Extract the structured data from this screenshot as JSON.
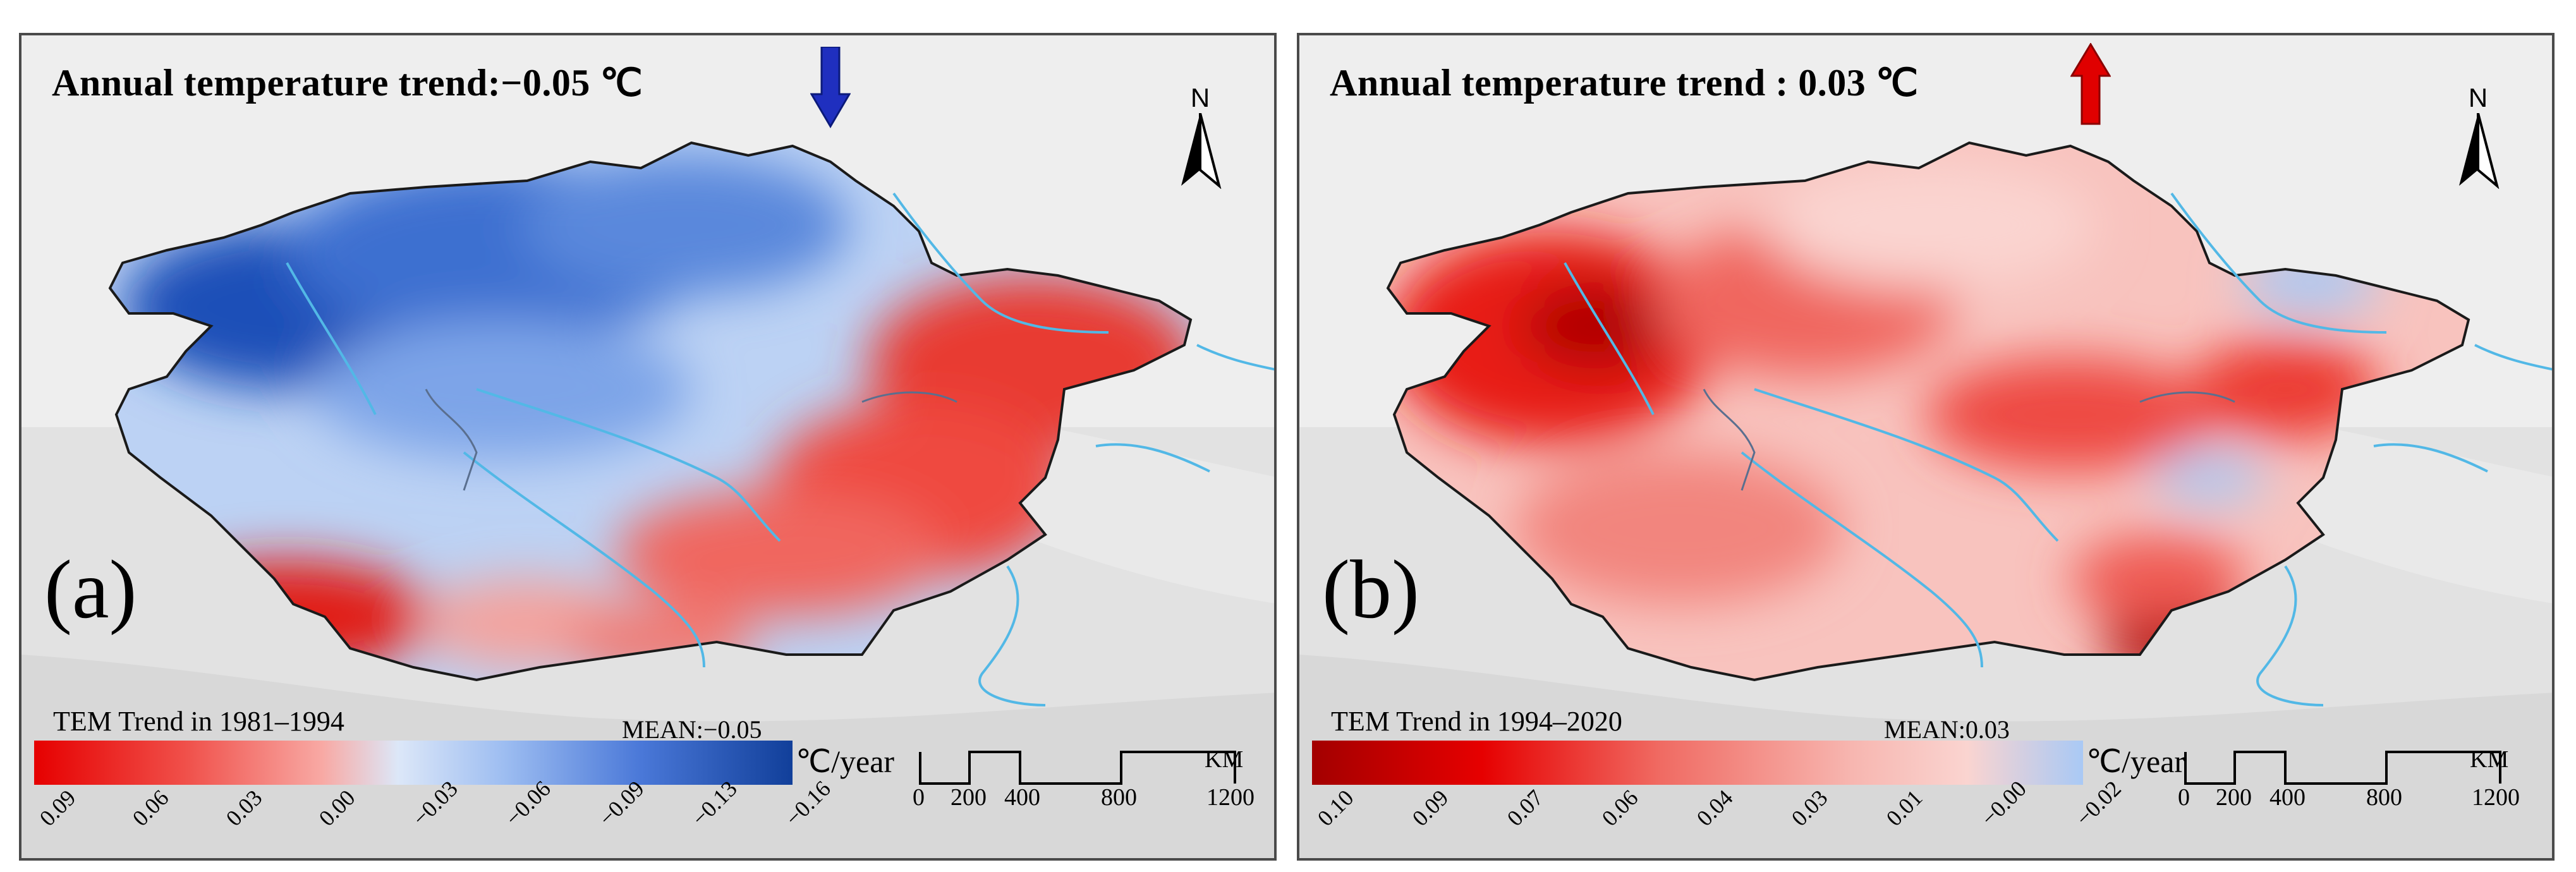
{
  "panels": [
    {
      "id": "a",
      "title": "Annual temperature trend:−0.05 ℃",
      "letter": "(a)",
      "legend_title": "TEM Trend in 1981–1994",
      "mean_label": "MEAN:−0.05",
      "unit": "℃/year",
      "ticks": [
        "0.09",
        "0.06",
        "0.03",
        "0.00",
        "−0.03",
        "−0.06",
        "−0.09",
        "−0.13",
        "−0.16"
      ],
      "trend_direction": "down",
      "arrow_color": "#1f2fbf",
      "colorbar_colors": [
        "#e60000",
        "#f0504a",
        "#f8a9a4",
        "#c8daf7",
        "#7aa4ec",
        "#2a5fc8",
        "#113f9a"
      ]
    },
    {
      "id": "b",
      "title": "Annual temperature trend : 0.03 ℃",
      "letter": "(b)",
      "legend_title": "TEM Trend in 1994–2020",
      "mean_label": "MEAN:0.03",
      "unit": "℃/year",
      "ticks": [
        "0.10",
        "0.09",
        "0.07",
        "0.06",
        "0.04",
        "0.03",
        "0.01",
        "−0.00",
        "−0.02"
      ],
      "trend_direction": "up",
      "arrow_color": "#e00000",
      "colorbar_colors": [
        "#a30000",
        "#e60000",
        "#f06a62",
        "#f7b6b0",
        "#fad4d0",
        "#a9c9f5"
      ]
    }
  ],
  "north_label": "N",
  "scale_bar": {
    "labels": [
      "0",
      "200",
      "400",
      "800",
      "1200"
    ],
    "unit": "KM"
  }
}
